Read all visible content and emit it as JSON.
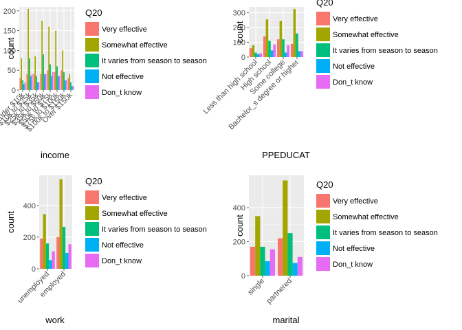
{
  "colors": [
    "#F8766D",
    "#A3A500",
    "#00BF7D",
    "#00B0F6",
    "#E76BF3"
  ],
  "chart_data": [
    {
      "type": "bar",
      "xlabel": "income",
      "ylabel": "count",
      "legend_title": "Q20",
      "legend_position": "right",
      "grid": true,
      "ylim": [
        0,
        210
      ],
      "yticks": [
        0,
        50,
        100,
        150,
        200
      ],
      "categories": [
        "Under $10k",
        "$10k to $25k",
        "$25k to $35k",
        "$35k to $50k",
        "$50k to $75k",
        "$75k to $100k",
        "$100k to $150k",
        "Over $150k"
      ],
      "series": [
        {
          "name": "Very effective",
          "values": [
            30,
            40,
            40,
            40,
            50,
            45,
            50,
            30
          ]
        },
        {
          "name": "Somewhat effective",
          "values": [
            80,
            205,
            85,
            175,
            160,
            150,
            100,
            40
          ]
        },
        {
          "name": "It varies from season to season",
          "values": [
            25,
            80,
            35,
            90,
            65,
            60,
            45,
            20
          ]
        },
        {
          "name": "Not effective",
          "values": [
            15,
            35,
            20,
            40,
            35,
            35,
            25,
            10
          ]
        },
        {
          "name": "Don_t know",
          "values": [
            20,
            40,
            20,
            40,
            45,
            35,
            25,
            10
          ]
        }
      ]
    },
    {
      "type": "bar",
      "xlabel": "PPEDUCAT",
      "ylabel": "count",
      "legend_title": "Q20",
      "legend_position": "right",
      "grid": true,
      "ylim": [
        0,
        340
      ],
      "yticks": [
        0,
        100,
        200,
        300
      ],
      "categories": [
        "Less than high school",
        "High school",
        "Some college",
        "Bachelor_s degree or higher"
      ],
      "series": [
        {
          "name": "Very effective",
          "values": [
            60,
            140,
            120,
            90
          ]
        },
        {
          "name": "Somewhat effective",
          "values": [
            80,
            255,
            245,
            325
          ]
        },
        {
          "name": "It varies from season to season",
          "values": [
            30,
            110,
            120,
            160
          ]
        },
        {
          "name": "Not effective",
          "values": [
            20,
            45,
            30,
            40
          ]
        },
        {
          "name": "Don_t know",
          "values": [
            25,
            85,
            80,
            40
          ]
        }
      ]
    },
    {
      "type": "bar",
      "xlabel": "work",
      "ylabel": "count",
      "legend_title": "Q20",
      "legend_position": "right",
      "grid": true,
      "ylim": [
        0,
        590
      ],
      "yticks": [
        0,
        200,
        400
      ],
      "categories": [
        "unemployed",
        "employed"
      ],
      "series": [
        {
          "name": "Very effective",
          "values": [
            190,
            200
          ]
        },
        {
          "name": "Somewhat effective",
          "values": [
            345,
            565
          ]
        },
        {
          "name": "It varies from season to season",
          "values": [
            160,
            265
          ]
        },
        {
          "name": "Not effective",
          "values": [
            55,
            100
          ]
        },
        {
          "name": "Don_t know",
          "values": [
            110,
            155
          ]
        }
      ]
    },
    {
      "type": "bar",
      "xlabel": "marital",
      "ylabel": "count",
      "legend_title": "Q20",
      "legend_position": "right",
      "grid": true,
      "ylim": [
        0,
        590
      ],
      "yticks": [
        0,
        200,
        400
      ],
      "categories": [
        "single",
        "partnered"
      ],
      "series": [
        {
          "name": "Very effective",
          "values": [
            170,
            220
          ]
        },
        {
          "name": "Somewhat effective",
          "values": [
            350,
            560
          ]
        },
        {
          "name": "It varies from season to season",
          "values": [
            170,
            250
          ]
        },
        {
          "name": "Not effective",
          "values": [
            85,
            75
          ]
        },
        {
          "name": "Don_t know",
          "values": [
            155,
            110
          ]
        }
      ]
    }
  ]
}
